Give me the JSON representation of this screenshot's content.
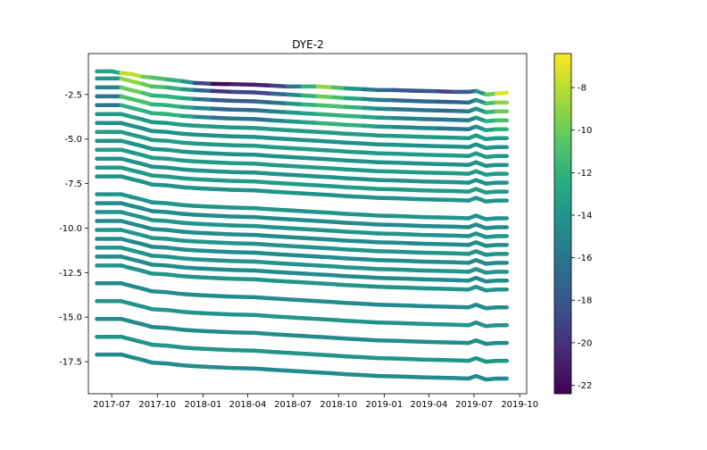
{
  "chart_data": {
    "type": "scatter",
    "title": "DYE-2",
    "xlabel": "",
    "ylabel": "",
    "x_range": [
      "2017-05-15",
      "2019-10-15"
    ],
    "xticks": [
      "2017-07",
      "2017-10",
      "2018-01",
      "2018-04",
      "2018-07",
      "2018-10",
      "2019-01",
      "2019-04",
      "2019-07",
      "2019-10"
    ],
    "ylim": [
      -19.3,
      -0.2
    ],
    "yticks": [
      -2.5,
      -5.0,
      -7.5,
      -10.0,
      -12.5,
      -15.0,
      -17.5
    ],
    "grid": false,
    "colormap": "viridis",
    "colorbar": {
      "min": -22.4,
      "max": -6.4,
      "ticks": [
        -8,
        -10,
        -12,
        -14,
        -16,
        -18,
        -20,
        -22
      ]
    },
    "x_dates": [
      "2017-06-01",
      "2017-07-01",
      "2017-07-20",
      "2017-08-10",
      "2017-09-01",
      "2017-09-20",
      "2017-10-20",
      "2017-11-20",
      "2017-12-15",
      "2018-01-20",
      "2018-03-01",
      "2018-04-15",
      "2018-05-20",
      "2018-06-20",
      "2018-07-20",
      "2018-08-20",
      "2018-09-20",
      "2018-10-15",
      "2018-11-20",
      "2018-12-20",
      "2019-01-20",
      "2019-02-20",
      "2019-03-20",
      "2019-04-20",
      "2019-05-20",
      "2019-06-20",
      "2019-07-05",
      "2019-07-25",
      "2019-08-15",
      "2019-09-05"
    ],
    "sensor_initial_depths": [
      -1.2,
      -1.6,
      -2.1,
      -2.6,
      -3.1,
      -3.6,
      -4.1,
      -4.6,
      -5.1,
      -5.6,
      -6.1,
      -6.6,
      -7.1,
      -8.1,
      -8.6,
      -9.1,
      -9.6,
      -10.1,
      -10.6,
      -11.1,
      -11.6,
      -12.1,
      -13.1,
      -14.1,
      -15.1,
      -16.1,
      -17.1
    ],
    "depth_offsets": [
      0,
      0,
      0,
      -0.15,
      -0.3,
      -0.45,
      -0.5,
      -0.6,
      -0.65,
      -0.7,
      -0.75,
      -0.78,
      -0.85,
      -0.9,
      -0.95,
      -1.0,
      -1.05,
      -1.1,
      -1.15,
      -1.2,
      -1.22,
      -1.25,
      -1.28,
      -1.3,
      -1.32,
      -1.35,
      -1.2,
      -1.4,
      -1.35,
      -1.35
    ],
    "top_sensor_y": [
      -1.2,
      -1.2,
      -1.3,
      -1.35,
      -1.5,
      -1.55,
      -1.65,
      -1.75,
      -1.85,
      -1.9,
      -1.92,
      -1.95,
      -2.0,
      -2.05,
      -2.05,
      -2.05,
      -2.1,
      -2.15,
      -2.2,
      -2.25,
      -2.25,
      -2.28,
      -2.3,
      -2.32,
      -2.35,
      -2.35,
      -2.3,
      -2.5,
      -2.45,
      -2.4
    ],
    "colour_note_values": {
      "top_rows": [
        [
          -13,
          -13,
          -8,
          -8,
          -10,
          -11,
          -12,
          -14,
          -19,
          -22,
          -21,
          -21,
          -19,
          -16,
          -12,
          -9,
          -11,
          -14,
          -16,
          -17,
          -18,
          -18,
          -18,
          -19,
          -18,
          -17,
          -14,
          -10,
          -7,
          -7
        ],
        [
          -14,
          -14,
          -9,
          -9,
          -10,
          -11,
          -12,
          -14,
          -17,
          -20,
          -19,
          -19,
          -17,
          -15,
          -12,
          -10,
          -11,
          -13,
          -15,
          -16,
          -17,
          -17,
          -17,
          -18,
          -17,
          -16,
          -14,
          -11,
          -9,
          -9
        ],
        [
          -15,
          -15,
          -10,
          -10,
          -11,
          -12,
          -12,
          -13,
          -16,
          -18,
          -18,
          -17,
          -16,
          -14,
          -12,
          -11,
          -11,
          -12,
          -14,
          -15,
          -16,
          -16,
          -16,
          -17,
          -16,
          -15,
          -14,
          -12,
          -10,
          -10
        ],
        [
          -16,
          -16,
          -11,
          -11,
          -11,
          -12,
          -12,
          -13,
          -15,
          -17,
          -17,
          -16,
          -15,
          -14,
          -13,
          -12,
          -12,
          -12,
          -13,
          -14,
          -15,
          -15,
          -16,
          -16,
          -16,
          -15,
          -14,
          -12,
          -11,
          -11
        ],
        [
          -16,
          -16,
          -12,
          -12,
          -12,
          -12,
          -12,
          -13,
          -15,
          -16,
          -16,
          -16,
          -15,
          -14,
          -13,
          -12,
          -12,
          -12,
          -13,
          -14,
          -15,
          -15,
          -15,
          -16,
          -16,
          -15,
          -14,
          -13,
          -12,
          -12
        ]
      ],
      "mid_row_value": -14,
      "deep_row_value": -14.5
    }
  }
}
